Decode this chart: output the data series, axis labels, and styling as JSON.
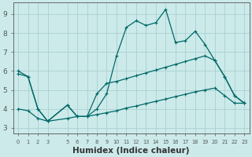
{
  "background_color": "#cceaea",
  "grid_color": "#aacfcf",
  "line_color": "#006868",
  "xlim": [
    -0.5,
    23.5
  ],
  "ylim": [
    2.7,
    9.6
  ],
  "yticks": [
    3,
    4,
    5,
    6,
    7,
    8,
    9
  ],
  "xticks": [
    0,
    1,
    2,
    3,
    5,
    6,
    7,
    8,
    9,
    10,
    11,
    12,
    13,
    14,
    15,
    16,
    17,
    18,
    19,
    20,
    21,
    22,
    23
  ],
  "xlabel": "Humidex (Indice chaleur)",
  "xlabel_fontsize": 7.5,
  "series": [
    {
      "x": [
        0,
        1,
        2,
        3,
        5,
        6,
        7,
        8,
        9,
        10,
        11,
        12,
        13,
        14,
        15,
        16,
        17,
        18,
        19,
        20,
        21,
        22,
        23
      ],
      "y": [
        6.0,
        5.7,
        4.0,
        3.35,
        4.2,
        3.6,
        3.6,
        4.0,
        4.8,
        6.8,
        8.3,
        8.65,
        8.4,
        8.55,
        9.25,
        7.5,
        7.6,
        8.1,
        7.4,
        6.55,
        5.7,
        4.7,
        4.3
      ]
    },
    {
      "x": [
        0,
        1,
        2,
        3,
        5,
        6,
        7,
        8,
        9,
        10,
        11,
        12,
        13,
        14,
        15,
        16,
        17,
        18,
        19,
        20,
        21,
        22,
        23
      ],
      "y": [
        5.85,
        5.7,
        4.0,
        3.35,
        4.2,
        3.6,
        3.6,
        4.8,
        5.35,
        5.45,
        5.6,
        5.75,
        5.9,
        6.05,
        6.2,
        6.35,
        6.5,
        6.65,
        6.8,
        6.55,
        5.7,
        4.7,
        4.3
      ]
    },
    {
      "x": [
        0,
        1,
        2,
        3,
        5,
        6,
        7,
        8,
        9,
        10,
        11,
        12,
        13,
        14,
        15,
        16,
        17,
        18,
        19,
        20,
        21,
        22,
        23
      ],
      "y": [
        4.0,
        3.9,
        3.5,
        3.35,
        3.5,
        3.6,
        3.6,
        3.7,
        3.8,
        3.9,
        4.05,
        4.15,
        4.28,
        4.4,
        4.52,
        4.65,
        4.77,
        4.9,
        5.0,
        5.1,
        4.7,
        4.3,
        4.3
      ]
    }
  ]
}
